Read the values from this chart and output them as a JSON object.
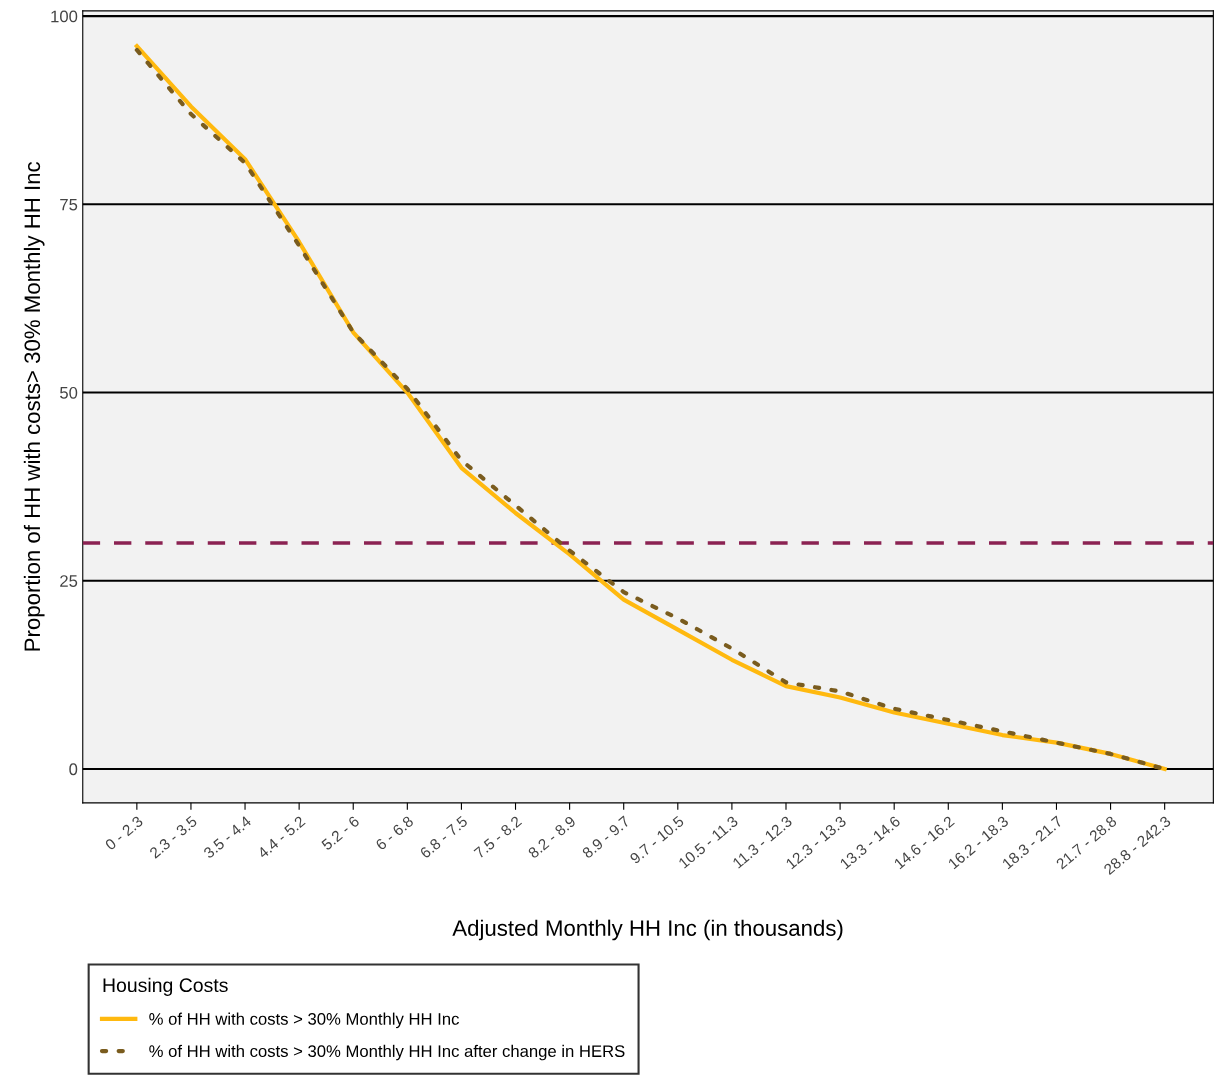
{
  "chart_data": {
    "type": "line",
    "xlabel": "Adjusted Monthly HH Inc (in thousands)",
    "ylabel": "Proportion of HH with costs> 30% Monthly HH Inc",
    "legend_title": "Housing Costs",
    "categories": [
      "0 - 2.3",
      "2.3 - 3.5",
      "3.5 - 4.4",
      "4.4 - 5.2",
      "5.2 - 6",
      "6 - 6.8",
      "6.8 - 7.5",
      "7.5 - 8.2",
      "8.2 - 8.9",
      "8.9 - 9.7",
      "9.7 - 10.5",
      "10.5 - 11.3",
      "11.3 - 12.3",
      "12.3 - 13.3",
      "13.3 - 14.6",
      "14.6 - 16.2",
      "16.2 - 18.3",
      "18.3 - 21.7",
      "21.7 - 28.8",
      "28.8 - 242.3"
    ],
    "series": [
      {
        "name": "% of HH with costs > 30% Monthly HH Inc",
        "color": "#ffb90f",
        "line_style": "solid",
        "values": [
          96,
          88,
          81,
          70,
          58,
          50,
          40,
          34,
          28.5,
          22.5,
          18.5,
          14.5,
          11,
          9.5,
          7.5,
          6,
          4.5,
          3.5,
          2,
          0
        ]
      },
      {
        "name": "% of HH with costs > 30% Monthly HH Inc after change in HERS",
        "color": "#7a5c1e",
        "line_style": "dotted",
        "values": [
          95.5,
          87,
          80.5,
          69.5,
          58,
          50.5,
          41,
          35,
          29,
          23.5,
          20,
          16,
          11.5,
          10.3,
          8,
          6.5,
          5,
          3.5,
          2,
          0
        ]
      }
    ],
    "ref_lines": [
      {
        "axis": "y",
        "value": 30,
        "color": "#8b2252",
        "line_style": "dashed"
      }
    ],
    "ylim": [
      -4.5,
      100.7
    ],
    "yticks": [
      0,
      25,
      50,
      75,
      100
    ],
    "grid": "y",
    "legend": "bottom left"
  }
}
